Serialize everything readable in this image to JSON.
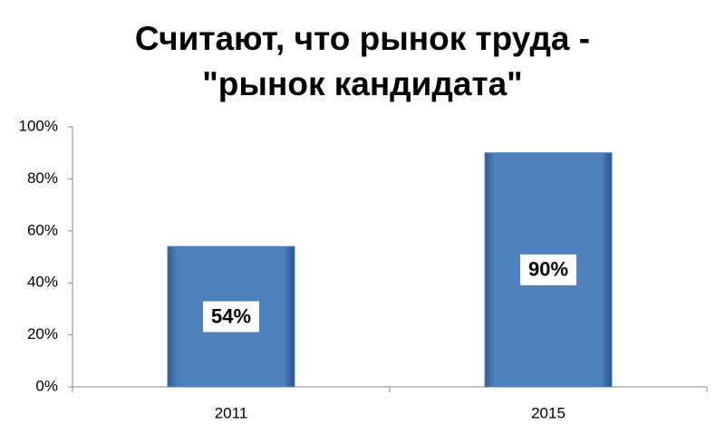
{
  "chart_data": {
    "type": "bar",
    "title": "Считают, что рынок труда - \"рынок кандидата\"",
    "categories": [
      "2011",
      "2015"
    ],
    "values": [
      54,
      90
    ],
    "value_labels": [
      "54%",
      "90%"
    ],
    "color": "#4f81bd",
    "ylim": [
      0,
      100
    ],
    "yticks": [
      {
        "value": 0,
        "label": "0%"
      },
      {
        "value": 20,
        "label": "20%"
      },
      {
        "value": 40,
        "label": "40%"
      },
      {
        "value": 60,
        "label": "60%"
      },
      {
        "value": 80,
        "label": "80%"
      },
      {
        "value": 100,
        "label": "100%"
      }
    ],
    "grid": false
  }
}
